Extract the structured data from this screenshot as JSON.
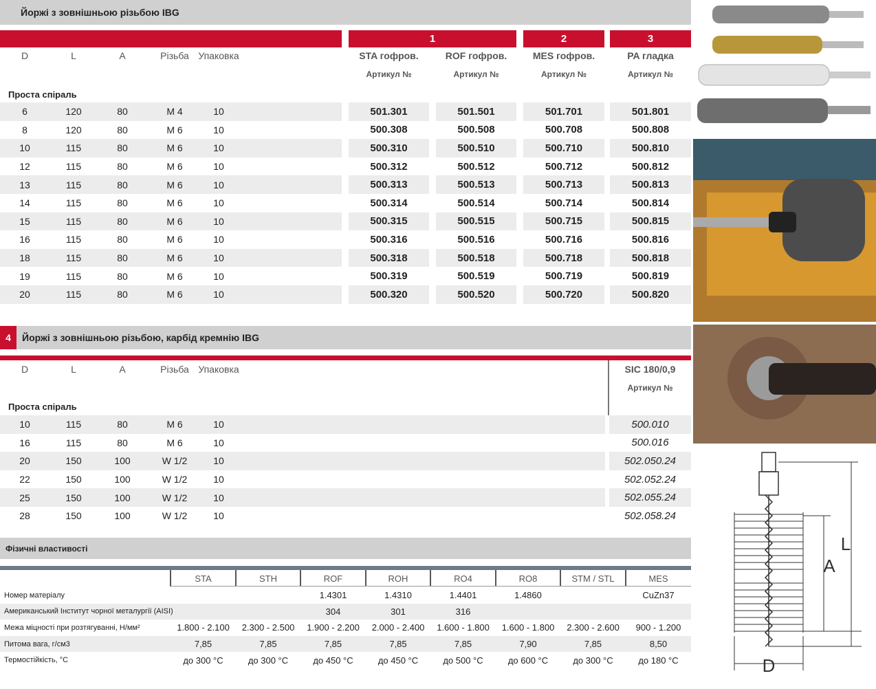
{
  "section1": {
    "title": "Йоржі з зовнішньою різьбою IBG",
    "headers": [
      "D",
      "L",
      "A",
      "Різьба",
      "Упаковка"
    ],
    "groups": [
      "1",
      "2",
      "3"
    ],
    "columns": [
      "STA гофров.",
      "ROF гофров.",
      "MES гофров.",
      "PA гладка"
    ],
    "article": "Артикул №",
    "subheading": "Проста спіраль",
    "rows": [
      [
        "6",
        "120",
        "80",
        "М 4",
        "10",
        "501.301",
        "501.501",
        "501.701",
        "501.801"
      ],
      [
        "8",
        "120",
        "80",
        "М 6",
        "10",
        "500.308",
        "500.508",
        "500.708",
        "500.808"
      ],
      [
        "10",
        "115",
        "80",
        "М 6",
        "10",
        "500.310",
        "500.510",
        "500.710",
        "500.810"
      ],
      [
        "12",
        "115",
        "80",
        "М 6",
        "10",
        "500.312",
        "500.512",
        "500.712",
        "500.812"
      ],
      [
        "13",
        "115",
        "80",
        "М 6",
        "10",
        "500.313",
        "500.513",
        "500.713",
        "500.813"
      ],
      [
        "14",
        "115",
        "80",
        "М 6",
        "10",
        "500.314",
        "500.514",
        "500.714",
        "500.814"
      ],
      [
        "15",
        "115",
        "80",
        "М 6",
        "10",
        "500.315",
        "500.515",
        "500.715",
        "500.815"
      ],
      [
        "16",
        "115",
        "80",
        "М 6",
        "10",
        "500.316",
        "500.516",
        "500.716",
        "500.816"
      ],
      [
        "18",
        "115",
        "80",
        "М 6",
        "10",
        "500.318",
        "500.518",
        "500.718",
        "500.818"
      ],
      [
        "19",
        "115",
        "80",
        "М 6",
        "10",
        "500.319",
        "500.519",
        "500.719",
        "500.819"
      ],
      [
        "20",
        "115",
        "80",
        "М 6",
        "10",
        "500.320",
        "500.520",
        "500.720",
        "500.820"
      ]
    ]
  },
  "section2": {
    "number": "4",
    "title": "Йоржі з зовнішньою різьбою, карбід кремнію IBG",
    "headers": [
      "D",
      "L",
      "A",
      "Різьба",
      "Упаковка"
    ],
    "column": "SIC 180/0,9",
    "article": "Артикул №",
    "subheading": "Проста спіраль",
    "rows": [
      [
        "10",
        "115",
        "80",
        "М 6",
        "10",
        "500.010"
      ],
      [
        "16",
        "115",
        "80",
        "М 6",
        "10",
        "500.016"
      ],
      [
        "20",
        "150",
        "100",
        "W 1/2",
        "10",
        "502.050.24"
      ],
      [
        "22",
        "150",
        "100",
        "W 1/2",
        "10",
        "502.052.24"
      ],
      [
        "25",
        "150",
        "100",
        "W 1/2",
        "10",
        "502.055.24"
      ],
      [
        "28",
        "150",
        "100",
        "W 1/2",
        "10",
        "502.058.24"
      ]
    ]
  },
  "section3": {
    "title": "Фізичні властивості",
    "columns": [
      "STA",
      "STH",
      "ROF",
      "ROH",
      "RO4",
      "RO8",
      "STM / STL",
      "MES"
    ],
    "rows": [
      {
        "label": "Номер матеріалу",
        "values": [
          null,
          null,
          "1.4301",
          "1.4310",
          "1.4401",
          "1.4860",
          null,
          "CuZn37"
        ]
      },
      {
        "label": "Американський Інститут чорної металургії (AISI)",
        "values": [
          null,
          null,
          "304",
          "301",
          "316",
          null,
          null,
          null
        ]
      },
      {
        "label": "Межа міцності при розтягуванні, Н/мм²",
        "values": [
          "1.800 - 2.100",
          "2.300 - 2.500",
          "1.900 - 2.200",
          "2.000 - 2.400",
          "1.600 - 1.800",
          "1.600 - 1.800",
          "2.300 - 2.600",
          "900 - 1.200"
        ]
      },
      {
        "label": "Питома вага, г/см3",
        "values": [
          "7,85",
          "7,85",
          "7,85",
          "7,85",
          "7,85",
          "7,90",
          "7,85",
          "8,50"
        ]
      },
      {
        "label": "Термостійкість, °C",
        "values": [
          "до 300 °C",
          "до 300 °C",
          "до 450 °C",
          "до 450 °C",
          "до 500 °C",
          "до 600 °C",
          "до 300 °C",
          "до 180 °C"
        ]
      }
    ]
  },
  "diagram": {
    "labels": [
      "L",
      "A",
      "D"
    ]
  }
}
